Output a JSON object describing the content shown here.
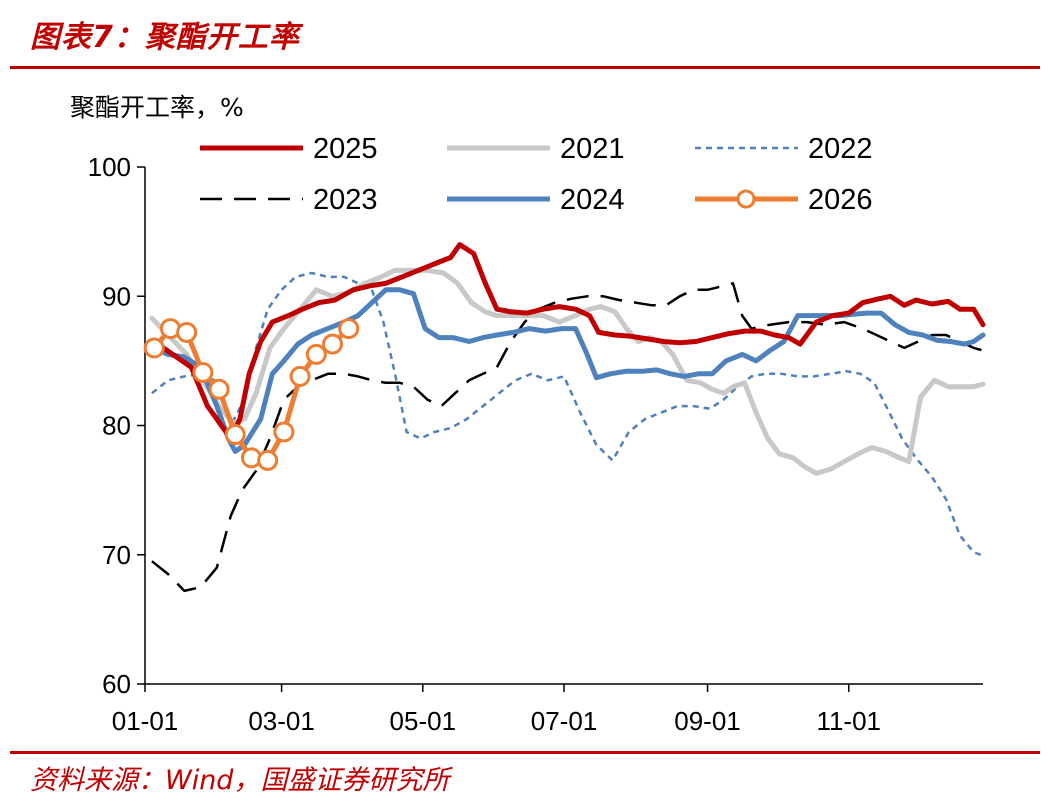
{
  "header": {
    "title": "图表7：聚酯开工率"
  },
  "footer": {
    "source": "资料来源：Wind，国盛证券研究所"
  },
  "chart_data": {
    "type": "line",
    "title": "图表7：聚酯开工率",
    "ylabel": "聚酯开工率，%",
    "xlabel": "",
    "ylim": [
      60,
      100
    ],
    "y_ticks": [
      "60",
      "70",
      "80",
      "90",
      "100"
    ],
    "x_domain_days": [
      0,
      362
    ],
    "x_ticks": [
      {
        "label": "01-01",
        "day": 0
      },
      {
        "label": "03-01",
        "day": 59
      },
      {
        "label": "05-01",
        "day": 120
      },
      {
        "label": "07-01",
        "day": 181
      },
      {
        "label": "09-01",
        "day": 243
      },
      {
        "label": "11-01",
        "day": 304
      }
    ],
    "legend": {
      "placement": "top",
      "columns": 3
    },
    "series": [
      {
        "name": "2025",
        "color": "#C00000",
        "width": 5,
        "dash": "",
        "markers": false,
        "points": [
          [
            4,
            86.5
          ],
          [
            12,
            85.5
          ],
          [
            20,
            84.5
          ],
          [
            27,
            81.5
          ],
          [
            33,
            80
          ],
          [
            37,
            79
          ],
          [
            41,
            80.5
          ],
          [
            45,
            84
          ],
          [
            50,
            86.5
          ],
          [
            55,
            88
          ],
          [
            62,
            88.5
          ],
          [
            68,
            89
          ],
          [
            75,
            89.5
          ],
          [
            82,
            89.7
          ],
          [
            90,
            90.5
          ],
          [
            97,
            90.8
          ],
          [
            104,
            91
          ],
          [
            111,
            91.5
          ],
          [
            118,
            92
          ],
          [
            125,
            92.5
          ],
          [
            132,
            93
          ],
          [
            136,
            94
          ],
          [
            142,
            93.3
          ],
          [
            147,
            91
          ],
          [
            152,
            89
          ],
          [
            158,
            88.8
          ],
          [
            165,
            88.7
          ],
          [
            172,
            89
          ],
          [
            179,
            89.2
          ],
          [
            186,
            89
          ],
          [
            192,
            88.5
          ],
          [
            196,
            87.2
          ],
          [
            203,
            87
          ],
          [
            210,
            86.9
          ],
          [
            217,
            86.7
          ],
          [
            224,
            86.5
          ],
          [
            231,
            86.4
          ],
          [
            238,
            86.5
          ],
          [
            245,
            86.8
          ],
          [
            252,
            87.1
          ],
          [
            259,
            87.3
          ],
          [
            266,
            87.3
          ],
          [
            272,
            87
          ],
          [
            278,
            86.8
          ],
          [
            283,
            86.3
          ],
          [
            290,
            88
          ],
          [
            297,
            88.5
          ],
          [
            304,
            88.7
          ],
          [
            310,
            89.5
          ],
          [
            317,
            89.8
          ],
          [
            322,
            90
          ],
          [
            328,
            89.3
          ],
          [
            333,
            89.7
          ],
          [
            340,
            89.4
          ],
          [
            347,
            89.6
          ],
          [
            352,
            89
          ],
          [
            358,
            89
          ],
          [
            362,
            87.8
          ]
        ]
      },
      {
        "name": "2021",
        "color": "#C8C8C8",
        "width": 5,
        "dash": "",
        "markers": false,
        "points": [
          [
            3,
            88.3
          ],
          [
            10,
            87
          ],
          [
            18,
            85.5
          ],
          [
            25,
            83.5
          ],
          [
            32,
            81.5
          ],
          [
            38,
            80.2
          ],
          [
            43,
            80.5
          ],
          [
            48,
            82.5
          ],
          [
            54,
            86
          ],
          [
            60,
            87.5
          ],
          [
            67,
            89
          ],
          [
            74,
            90.5
          ],
          [
            81,
            90
          ],
          [
            88,
            90.3
          ],
          [
            95,
            91
          ],
          [
            102,
            91.5
          ],
          [
            108,
            92
          ],
          [
            115,
            92
          ],
          [
            122,
            92
          ],
          [
            129,
            91.8
          ],
          [
            135,
            91
          ],
          [
            141,
            89.5
          ],
          [
            147,
            88.8
          ],
          [
            152,
            88.5
          ],
          [
            158,
            88.5
          ],
          [
            165,
            88.5
          ],
          [
            172,
            88.5
          ],
          [
            179,
            88
          ],
          [
            186,
            88.5
          ],
          [
            192,
            89
          ],
          [
            197,
            89.2
          ],
          [
            203,
            88.8
          ],
          [
            208,
            87.5
          ],
          [
            213,
            86.5
          ],
          [
            218,
            86.8
          ],
          [
            223,
            86.5
          ],
          [
            228,
            85.5
          ],
          [
            234,
            83.5
          ],
          [
            240,
            83.3
          ],
          [
            245,
            82.8
          ],
          [
            250,
            82.5
          ],
          [
            254,
            83
          ],
          [
            259,
            83.3
          ],
          [
            264,
            81
          ],
          [
            269,
            79
          ],
          [
            274,
            77.8
          ],
          [
            280,
            77.5
          ],
          [
            285,
            76.8
          ],
          [
            290,
            76.3
          ],
          [
            296,
            76.6
          ],
          [
            302,
            77.2
          ],
          [
            308,
            77.8
          ],
          [
            314,
            78.3
          ],
          [
            320,
            78
          ],
          [
            326,
            77.5
          ],
          [
            330,
            77.2
          ],
          [
            335,
            82.2
          ],
          [
            341,
            83.5
          ],
          [
            347,
            83
          ],
          [
            352,
            83
          ],
          [
            358,
            83
          ],
          [
            362,
            83.2
          ]
        ]
      },
      {
        "name": "2022",
        "color": "#4F81BD",
        "width": 2.5,
        "dash": "6,5",
        "markers": false,
        "points": [
          [
            3,
            82.5
          ],
          [
            10,
            83.5
          ],
          [
            17,
            83.8
          ],
          [
            24,
            84
          ],
          [
            30,
            83.5
          ],
          [
            37,
            80
          ],
          [
            43,
            82
          ],
          [
            48,
            86
          ],
          [
            53,
            89
          ],
          [
            59,
            90.5
          ],
          [
            65,
            91.5
          ],
          [
            72,
            91.8
          ],
          [
            79,
            91.5
          ],
          [
            86,
            91.5
          ],
          [
            92,
            91
          ],
          [
            98,
            90.5
          ],
          [
            103,
            88
          ],
          [
            108,
            84
          ],
          [
            113,
            79.5
          ],
          [
            119,
            79
          ],
          [
            125,
            79.5
          ],
          [
            132,
            79.8
          ],
          [
            139,
            80.5
          ],
          [
            146,
            81.5
          ],
          [
            153,
            82.5
          ],
          [
            160,
            83.5
          ],
          [
            167,
            84
          ],
          [
            174,
            83.5
          ],
          [
            181,
            83.8
          ],
          [
            188,
            81
          ],
          [
            195,
            78.5
          ],
          [
            202,
            77.3
          ],
          [
            209,
            79.5
          ],
          [
            216,
            80.5
          ],
          [
            223,
            81
          ],
          [
            230,
            81.5
          ],
          [
            237,
            81.5
          ],
          [
            244,
            81.3
          ],
          [
            250,
            82
          ],
          [
            256,
            83
          ],
          [
            262,
            83.8
          ],
          [
            268,
            84
          ],
          [
            275,
            84
          ],
          [
            282,
            83.8
          ],
          [
            289,
            83.8
          ],
          [
            296,
            84
          ],
          [
            303,
            84.2
          ],
          [
            309,
            84
          ],
          [
            315,
            83.3
          ],
          [
            321,
            81.2
          ],
          [
            327,
            79
          ],
          [
            333,
            77.5
          ],
          [
            340,
            76
          ],
          [
            346,
            74.3
          ],
          [
            352,
            71.5
          ],
          [
            358,
            70.2
          ],
          [
            361,
            70
          ]
        ]
      },
      {
        "name": "2023",
        "color": "#000000",
        "width": 2.5,
        "dash": "22,12",
        "markers": false,
        "points": [
          [
            3,
            69.5
          ],
          [
            10,
            68.5
          ],
          [
            17,
            67.2
          ],
          [
            24,
            67.5
          ],
          [
            31,
            69
          ],
          [
            37,
            73
          ],
          [
            42,
            75
          ],
          [
            48,
            76.5
          ],
          [
            54,
            79
          ],
          [
            60,
            82
          ],
          [
            66,
            83
          ],
          [
            72,
            83.5
          ],
          [
            79,
            84
          ],
          [
            86,
            84
          ],
          [
            92,
            83.8
          ],
          [
            98,
            83.5
          ],
          [
            104,
            83.3
          ],
          [
            110,
            83.3
          ],
          [
            116,
            83
          ],
          [
            122,
            82
          ],
          [
            128,
            81.5
          ],
          [
            134,
            82.5
          ],
          [
            140,
            83.5
          ],
          [
            146,
            84
          ],
          [
            152,
            84.5
          ],
          [
            158,
            86.5
          ],
          [
            164,
            88
          ],
          [
            170,
            89
          ],
          [
            177,
            89.5
          ],
          [
            184,
            89.8
          ],
          [
            191,
            90
          ],
          [
            198,
            90
          ],
          [
            205,
            89.7
          ],
          [
            212,
            89.5
          ],
          [
            219,
            89.3
          ],
          [
            225,
            89.3
          ],
          [
            231,
            90
          ],
          [
            237,
            90.5
          ],
          [
            243,
            90.5
          ],
          [
            250,
            90.8
          ],
          [
            254,
            91
          ],
          [
            258,
            88.5
          ],
          [
            262,
            87.5
          ],
          [
            270,
            87.8
          ],
          [
            278,
            88
          ],
          [
            286,
            88
          ],
          [
            294,
            87.8
          ],
          [
            302,
            88
          ],
          [
            310,
            87.5
          ],
          [
            316,
            87
          ],
          [
            322,
            86.5
          ],
          [
            328,
            86
          ],
          [
            334,
            86.5
          ],
          [
            340,
            87
          ],
          [
            346,
            87
          ],
          [
            352,
            86.5
          ],
          [
            358,
            86
          ],
          [
            362,
            85.8
          ]
        ]
      },
      {
        "name": "2024",
        "color": "#4F81BD",
        "width": 5,
        "dash": "",
        "markers": false,
        "points": [
          [
            3,
            86
          ],
          [
            10,
            85.5
          ],
          [
            17,
            85.3
          ],
          [
            24,
            84.5
          ],
          [
            31,
            81.5
          ],
          [
            36,
            79
          ],
          [
            39,
            78
          ],
          [
            43,
            78.5
          ],
          [
            50,
            80.5
          ],
          [
            55,
            84
          ],
          [
            60,
            85
          ],
          [
            66,
            86.3
          ],
          [
            72,
            87
          ],
          [
            79,
            87.5
          ],
          [
            86,
            88
          ],
          [
            92,
            88.5
          ],
          [
            98,
            89.5
          ],
          [
            104,
            90.5
          ],
          [
            110,
            90.5
          ],
          [
            116,
            90.2
          ],
          [
            121,
            87.5
          ],
          [
            127,
            86.8
          ],
          [
            133,
            86.8
          ],
          [
            140,
            86.5
          ],
          [
            146,
            86.8
          ],
          [
            152,
            87
          ],
          [
            159,
            87.2
          ],
          [
            166,
            87.5
          ],
          [
            173,
            87.3
          ],
          [
            180,
            87.5
          ],
          [
            186,
            87.5
          ],
          [
            191,
            85.5
          ],
          [
            195,
            83.7
          ],
          [
            201,
            84
          ],
          [
            208,
            84.2
          ],
          [
            215,
            84.2
          ],
          [
            221,
            84.3
          ],
          [
            227,
            84
          ],
          [
            233,
            83.8
          ],
          [
            239,
            84
          ],
          [
            245,
            84
          ],
          [
            251,
            85
          ],
          [
            258,
            85.5
          ],
          [
            264,
            85
          ],
          [
            270,
            85.8
          ],
          [
            276,
            86.5
          ],
          [
            282,
            88.5
          ],
          [
            288,
            88.5
          ],
          [
            294,
            88.5
          ],
          [
            300,
            88.5
          ],
          [
            306,
            88.6
          ],
          [
            312,
            88.7
          ],
          [
            318,
            88.7
          ],
          [
            324,
            87.8
          ],
          [
            330,
            87.2
          ],
          [
            336,
            87
          ],
          [
            342,
            86.6
          ],
          [
            348,
            86.5
          ],
          [
            354,
            86.3
          ],
          [
            358,
            86.5
          ],
          [
            362,
            87
          ]
        ]
      },
      {
        "name": "2026",
        "color": "#ED7D31",
        "width": 5,
        "dash": "",
        "markers": true,
        "points": [
          [
            4,
            86
          ],
          [
            11,
            87.5
          ],
          [
            18,
            87.2
          ],
          [
            25,
            84.1
          ],
          [
            32,
            82.8
          ],
          [
            39,
            79.3
          ],
          [
            46,
            77.5
          ],
          [
            53,
            77.3
          ],
          [
            60,
            79.5
          ],
          [
            67,
            83.8
          ],
          [
            74,
            85.5
          ],
          [
            81,
            86.3
          ],
          [
            88,
            87.5
          ]
        ]
      }
    ]
  }
}
